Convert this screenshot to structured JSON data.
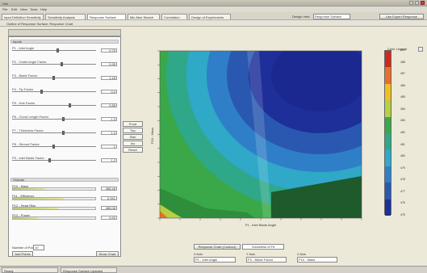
{
  "window": {
    "title": "Vrtx",
    "menu": [
      "File",
      "Edit",
      "View",
      "Tools",
      "Help"
    ]
  },
  "toolbar": {
    "tabs": [
      "Input Definition Sensitivity",
      "Sensitivity Analysis",
      "Response Surface",
      "Min-Max Search",
      "Correlation",
      "Design of Experiments"
    ],
    "right_label": "Design view",
    "right_value": "Response Surface",
    "right_button": "Use Expert Response"
  },
  "subbar": {
    "path": "Outline of Response Surface: Response Chart"
  },
  "left_panel": {
    "inputs_header": "Inputs",
    "inputs": [
      {
        "label": "P1 - Inlet Angle",
        "value": "0.75"
      },
      {
        "label": "P2 - Outlet Angle Factor",
        "value": "0.95"
      },
      {
        "label": "P3 - Blade Factor",
        "value": "1.18"
      },
      {
        "label": "P4 - Tip Factor",
        "value": "0.4"
      },
      {
        "label": "P5 - Hub Factor",
        "value": "0.85"
      },
      {
        "label": "P6 - Chord Length Factor",
        "value": "1.3"
      },
      {
        "label": "P7 - Thickness Factor",
        "value": "1.3"
      },
      {
        "label": "P8 - Shroud Factor",
        "value": "1"
      },
      {
        "label": "P9 - Inlet Blade Factor",
        "value": "1.2"
      }
    ],
    "outputs_header": "Outputs",
    "outputs": [
      {
        "label": "P10 - Mass",
        "value": "488.48",
        "level": 0.38
      },
      {
        "label": "P11 - Efficiency",
        "value": "0.941",
        "level": 0.62
      },
      {
        "label": "P12 - Head Rise",
        "value": "488.08",
        "level": 0.55
      },
      {
        "label": "P13 - Power",
        "value": "0.92",
        "level": 0.3
      }
    ],
    "footer_label": "Number of Points",
    "footer_value": "10",
    "btn_left": "Add Points",
    "btn_right": "Show Chart"
  },
  "view_options": [
    "Front",
    "Top",
    "Side",
    "Iso",
    "Reset"
  ],
  "chart_data": {
    "type": "heatmap",
    "description_visible": "contour plot of a response surface",
    "xlabel": "P1 - Inlet Blade Angle",
    "ylabel": "P10 - Mass",
    "legend_title": "Color Legend",
    "colorscale": [
      "#cc2a20",
      "#e8702a",
      "#f0c020",
      "#b8d040",
      "#3aa848",
      "#2ea888",
      "#30a8c8",
      "#2f7fc8",
      "#2a58b0",
      "#1e2f9a"
    ]
  },
  "legend_ticks": [
    "489",
    "488",
    "487",
    "486",
    "485",
    "484",
    "483",
    "482",
    "481",
    "480",
    "479",
    "478",
    "477",
    "476",
    "475"
  ],
  "axis_selectors": {
    "tab1": "Response Chart (Contour)",
    "tab2": "Goodness of Fit",
    "x_label": "X Axis",
    "x_value": "P1 - Inlet Angle",
    "y_label": "Y Axis",
    "y_value": "P3 - Blade Factor",
    "z_label": "Z Axis",
    "z_value": "P10 - Mass"
  },
  "statusbar": {
    "items": [
      "Ready",
      "Response Surface Updated"
    ]
  }
}
